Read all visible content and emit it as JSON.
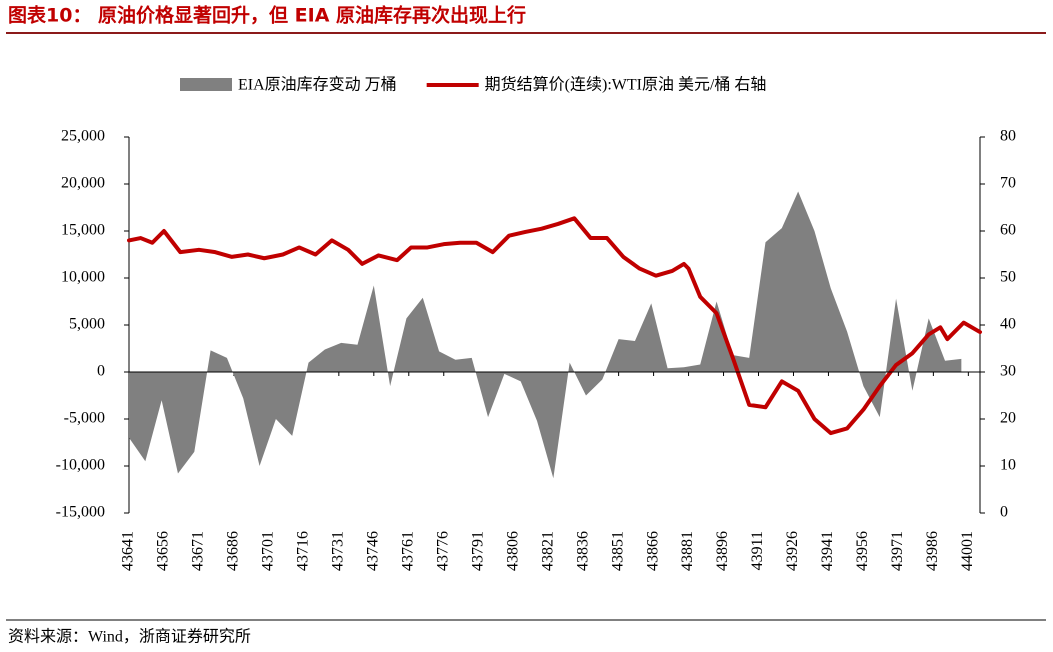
{
  "chart_data": {
    "type": "combo",
    "title": "图表10： 原油价格显著回升，但 EIA 原油库存再次出现上行",
    "source": "资料来源：Wind，浙商证券研究所",
    "x": [
      43641,
      43648,
      43655,
      43662,
      43669,
      43676,
      43683,
      43690,
      43697,
      43704,
      43711,
      43718,
      43725,
      43732,
      43739,
      43746,
      43753,
      43760,
      43767,
      43774,
      43781,
      43788,
      43795,
      43802,
      43809,
      43816,
      43823,
      43830,
      43837,
      43844,
      43851,
      43858,
      43865,
      43872,
      43879,
      43886,
      43893,
      43900,
      43907,
      43914,
      43921,
      43928,
      43935,
      43942,
      43949,
      43956,
      43963,
      43970,
      43977,
      43984,
      43991,
      43998
    ],
    "xlim": [
      43641,
      44006
    ],
    "xticks": [
      43641,
      43656,
      43671,
      43686,
      43701,
      43716,
      43731,
      43746,
      43761,
      43776,
      43791,
      43806,
      43821,
      43836,
      43851,
      43866,
      43881,
      43896,
      43911,
      43926,
      43941,
      43956,
      43971,
      43986,
      44001
    ],
    "ylim": [
      -15000,
      25000
    ],
    "yticks": [
      {
        "value": -15000,
        "label": "-15,000"
      },
      {
        "value": -10000,
        "label": "-10,000"
      },
      {
        "value": -5000,
        "label": "-5,000"
      },
      0,
      {
        "value": 5000,
        "label": "5,000"
      },
      {
        "value": 10000,
        "label": "10,000"
      },
      {
        "value": 15000,
        "label": "15,000"
      },
      {
        "value": 20000,
        "label": "20,000"
      },
      {
        "value": 25000,
        "label": "25,000"
      }
    ],
    "y2lim": [
      0,
      80
    ],
    "y2ticks": [
      0,
      10,
      20,
      30,
      40,
      50,
      60,
      70,
      80
    ],
    "series": [
      {
        "name": "EIA原油库存变动 万桶",
        "type": "area",
        "color": "#808080",
        "values": [
          -7000,
          -9500,
          -3000,
          -10800,
          -8500,
          2300,
          1500,
          -2800,
          -10000,
          -5000,
          -6800,
          1000,
          2400,
          3100,
          2900,
          9200,
          -1500,
          5700,
          7900,
          2200,
          1300,
          1500,
          -4800,
          -200,
          -1000,
          -5200,
          -11300,
          1000,
          -2500,
          -800,
          3500,
          3300,
          7300,
          400,
          500,
          800,
          7500,
          1800,
          1500,
          13800,
          15300,
          19200,
          15000,
          8900,
          4300,
          -1500,
          -4800,
          7800,
          -2000,
          5700,
          1200,
          1400
        ]
      },
      {
        "name": "期货结算价(连续):WTI原油 美元/桶 右轴",
        "type": "line",
        "axis": "y2",
        "color": "#c00000",
        "x": [
          43641,
          43646,
          43651,
          43656,
          43663,
          43671,
          43678,
          43685,
          43692,
          43699,
          43707,
          43714,
          43721,
          43728,
          43735,
          43741,
          43748,
          43756,
          43762,
          43769,
          43776,
          43783,
          43790,
          43797,
          43804,
          43811,
          43818,
          43825,
          43832,
          43839,
          43846,
          43853,
          43860,
          43867,
          43874,
          43879,
          43881,
          43886,
          43893,
          43900,
          43907,
          43914,
          43921,
          43928,
          43935,
          43942,
          43949,
          43956,
          43963,
          43970,
          43977,
          43984,
          43989,
          43992,
          43999,
          44006
        ],
        "values": [
          58,
          58.5,
          57.5,
          60,
          55.5,
          56,
          55.5,
          54.5,
          55,
          54.2,
          55,
          56.5,
          55,
          58,
          56,
          53,
          54.8,
          53.8,
          56.5,
          56.5,
          57.2,
          57.5,
          57.5,
          55.5,
          59,
          59.8,
          60.5,
          61.5,
          62.7,
          58.5,
          58.5,
          54.5,
          52,
          50.5,
          51.5,
          53,
          52,
          46,
          42.5,
          33,
          23,
          22.5,
          28,
          26,
          20,
          17,
          18,
          22,
          27,
          31.5,
          34,
          38,
          39.5,
          37,
          40.5,
          38.5
        ]
      }
    ]
  }
}
